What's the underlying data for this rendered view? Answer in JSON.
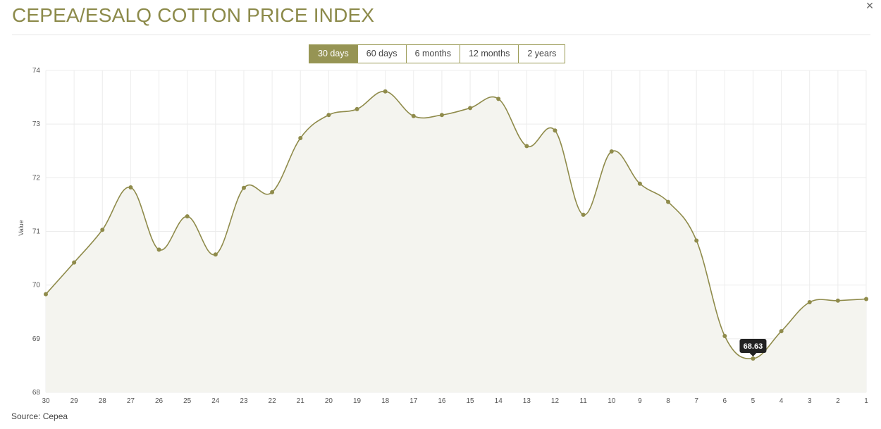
{
  "header": {
    "title": "CEPEA/ESALQ COTTON PRICE INDEX",
    "close_label": "×"
  },
  "range_tabs": [
    {
      "label": "30 days",
      "active": true
    },
    {
      "label": "60 days",
      "active": false
    },
    {
      "label": "6 months",
      "active": false
    },
    {
      "label": "12 months",
      "active": false
    },
    {
      "label": "2 years",
      "active": false
    }
  ],
  "footer": {
    "source": "Source: Cepea"
  },
  "chart_data": {
    "type": "area",
    "title": "CEPEA/ESALQ COTTON PRICE INDEX",
    "xlabel": "",
    "ylabel": "Value",
    "ylim": [
      68,
      74
    ],
    "y_ticks": [
      68,
      69,
      70,
      71,
      72,
      73,
      74
    ],
    "grid": true,
    "categories": [
      "30",
      "29",
      "28",
      "27",
      "26",
      "25",
      "24",
      "23",
      "22",
      "21",
      "20",
      "19",
      "18",
      "17",
      "16",
      "15",
      "14",
      "13",
      "12",
      "11",
      "10",
      "9",
      "8",
      "7",
      "6",
      "5",
      "4",
      "3",
      "2",
      "1"
    ],
    "series": [
      {
        "values": [
          69.83,
          70.42,
          71.03,
          71.82,
          70.66,
          71.28,
          70.57,
          71.81,
          71.73,
          72.74,
          73.17,
          73.28,
          73.61,
          73.15,
          73.17,
          73.3,
          73.47,
          72.59,
          72.88,
          71.31,
          72.49,
          71.89,
          71.55,
          70.83,
          69.05,
          68.63,
          69.14,
          69.68,
          69.71,
          69.74
        ],
        "color": "#8f8b4b"
      }
    ],
    "tooltip": {
      "category": "5",
      "label": "68.63"
    },
    "colors": {
      "line": "#8f8b4b",
      "area": "#f4f4ef",
      "grid": "#ececec",
      "tooltip_bg": "#222222"
    }
  }
}
